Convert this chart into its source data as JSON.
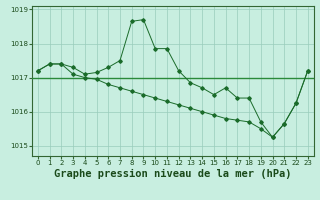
{
  "title": "Graphe pression niveau de la mer (hPa)",
  "background_color": "#c8eee0",
  "grid_color": "#99ccbb",
  "line_color": "#1a6b2a",
  "marker_color": "#1a6b2a",
  "hline_color": "#2a8a3a",
  "ylim": [
    1014.7,
    1019.1
  ],
  "yticks": [
    1015,
    1016,
    1017,
    1018,
    1019
  ],
  "xlim": [
    -0.5,
    23.5
  ],
  "xticks": [
    0,
    1,
    2,
    3,
    4,
    5,
    6,
    7,
    8,
    9,
    10,
    11,
    12,
    13,
    14,
    15,
    16,
    17,
    18,
    19,
    20,
    21,
    22,
    23
  ],
  "hline_y": 1017.0,
  "series1": [
    1017.2,
    1017.4,
    1017.4,
    1017.3,
    1017.1,
    1017.15,
    1017.3,
    1017.5,
    1018.65,
    1018.7,
    1017.85,
    1017.85,
    1017.2,
    1016.85,
    1016.7,
    1016.5,
    1016.7,
    1016.4,
    1016.4,
    1015.7,
    1015.25,
    1015.65,
    1016.25,
    1017.2
  ],
  "series2": [
    1017.2,
    1017.4,
    1017.4,
    1017.1,
    1017.0,
    1016.95,
    1016.8,
    1016.7,
    1016.6,
    1016.5,
    1016.4,
    1016.3,
    1016.2,
    1016.1,
    1016.0,
    1015.9,
    1015.8,
    1015.75,
    1015.7,
    1015.5,
    1015.25,
    1015.65,
    1016.25,
    1017.2
  ],
  "title_fontsize": 7.5,
  "tick_fontsize": 5.0
}
